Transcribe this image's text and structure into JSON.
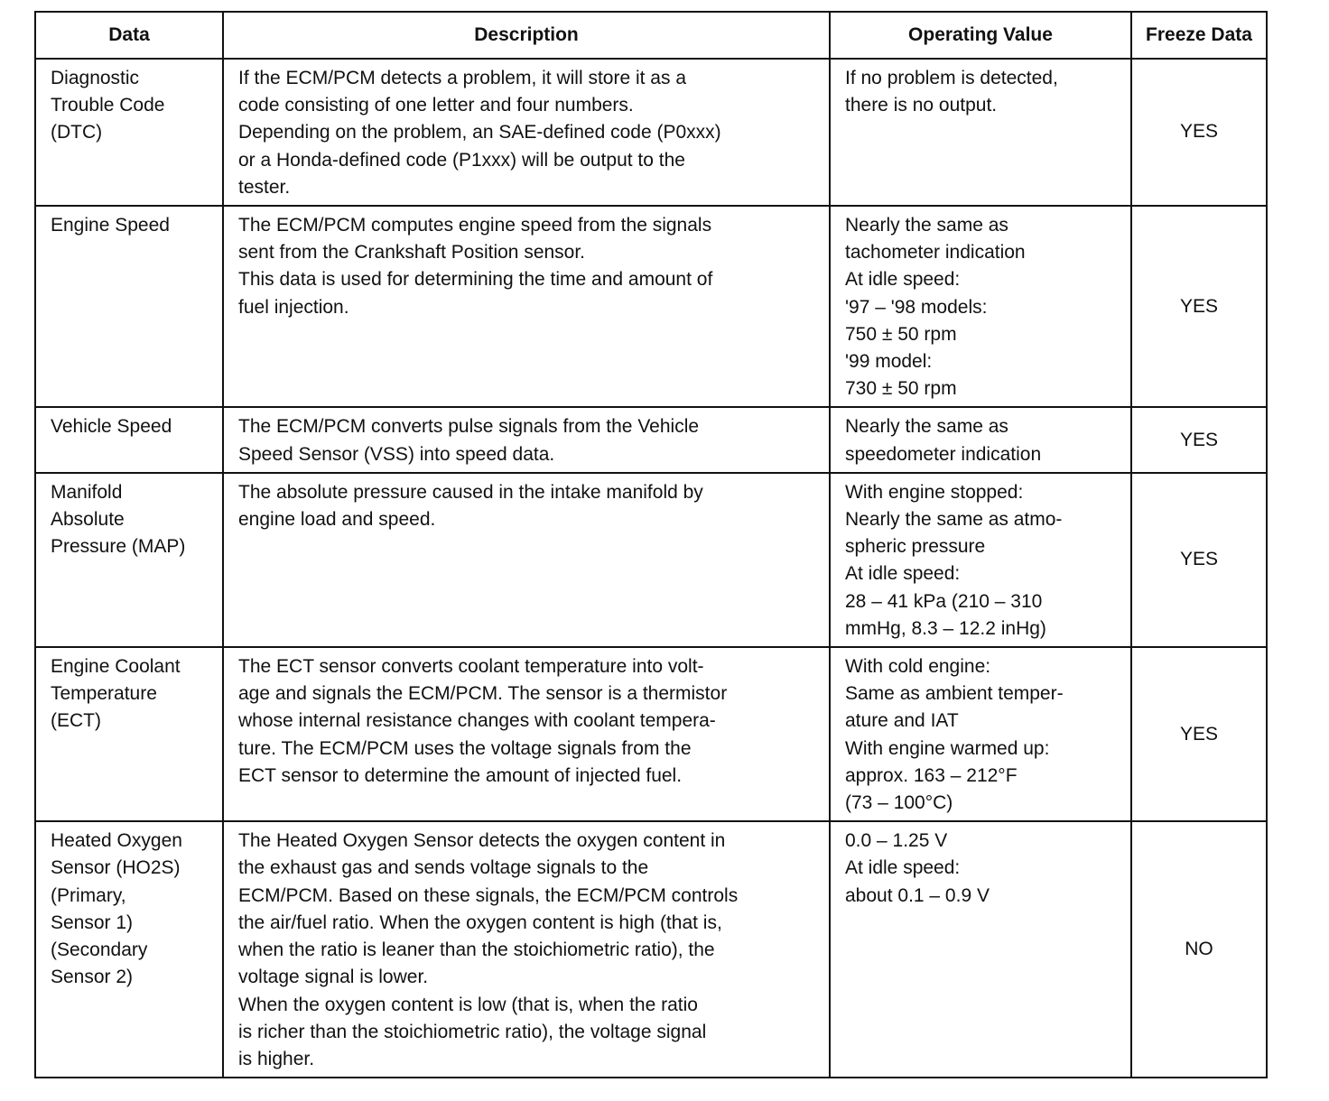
{
  "headers": [
    "Data",
    "Description",
    "Operating Value",
    "Freeze Data"
  ],
  "rows": [
    {
      "data": "Diagnostic\nTrouble Code\n(DTC)",
      "description": "If the ECM/PCM detects a problem, it will store it as a\ncode consisting of one letter and four numbers.\nDepending on the problem, an SAE-defined code (P0xxx)\nor a Honda-defined code (P1xxx) will be output to the\ntester.",
      "value": "If no problem is detected,\nthere is no output.",
      "freeze": "YES"
    },
    {
      "data": "Engine Speed",
      "description": "The ECM/PCM computes engine speed from the signals\nsent from the Crankshaft Position sensor.\nThis data is used for determining the time and amount of\nfuel injection.",
      "value": "Nearly the same as\ntachometer indication\nAt idle speed:\n'97 – '98 models:\n750 ± 50 rpm\n'99 model:\n730 ± 50 rpm",
      "freeze": "YES"
    },
    {
      "data": "Vehicle Speed",
      "description": "The ECM/PCM converts pulse signals from the Vehicle\nSpeed Sensor (VSS) into speed data.",
      "value": "Nearly the same as\nspeedometer indication",
      "freeze": "YES"
    },
    {
      "data": "Manifold\nAbsolute\nPressure (MAP)",
      "description": "The absolute pressure caused in the intake manifold by\nengine load and speed.",
      "value": "With engine stopped:\nNearly the same as atmo-\nspheric pressure\nAt idle speed:\n28 – 41 kPa (210 – 310\nmmHg, 8.3 – 12.2 inHg)",
      "freeze": "YES"
    },
    {
      "data": "Engine Coolant\nTemperature\n(ECT)",
      "description": "The ECT sensor converts coolant temperature into volt-\nage and signals the ECM/PCM. The sensor is a thermistor\nwhose internal resistance changes with coolant tempera-\nture. The ECM/PCM uses the voltage signals from the\nECT sensor to determine the amount of injected fuel.",
      "value": "With cold engine:\nSame as ambient temper-\nature and IAT\nWith engine warmed up:\napprox. 163 – 212°F\n(73 – 100°C)",
      "freeze": "YES"
    },
    {
      "data": "Heated Oxygen\nSensor (HO2S)\n(Primary,\nSensor 1)\n(Secondary\nSensor 2)",
      "description": "The Heated Oxygen Sensor detects the oxygen content in\nthe exhaust gas and sends voltage signals to the\nECM/PCM. Based on these signals, the ECM/PCM controls\nthe air/fuel ratio. When the oxygen content is high (that is,\nwhen the ratio is leaner than the stoichiometric ratio), the\nvoltage signal is lower.\nWhen the oxygen content is low (that is, when the ratio\nis richer than the stoichiometric ratio), the voltage signal\nis higher.",
      "value": "0.0 – 1.25 V\nAt idle speed:\nabout 0.1 – 0.9 V",
      "freeze": "NO"
    }
  ]
}
